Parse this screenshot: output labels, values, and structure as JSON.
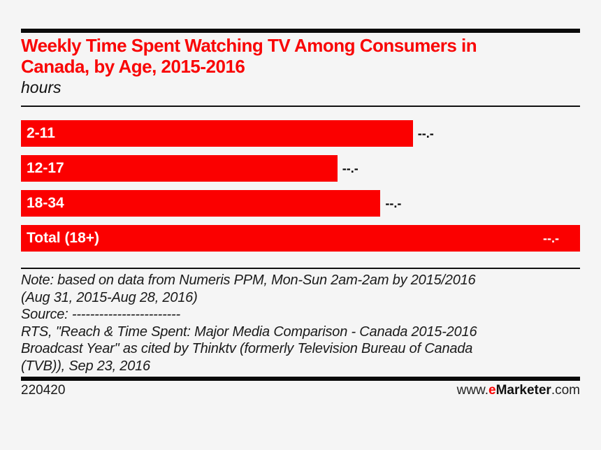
{
  "page": {
    "background": "#f5f5f5",
    "accent_red": "#fb0000",
    "rule_color": "#0a0a0a"
  },
  "header": {
    "title_line1": "Weekly Time Spent Watching TV Among Consumers in",
    "title_line2": "Canada, by Age, 2015-2016",
    "subtitle": "hours"
  },
  "chart_data": {
    "type": "bar",
    "orientation": "horizontal",
    "title": "Weekly Time Spent Watching TV Among Consumers in Canada, by Age, 2015-2016",
    "unit_label": "hours",
    "values_redacted": true,
    "grid": false,
    "legend": false,
    "bar_color": "#fb0000",
    "categories": [
      "2-11",
      "12-17",
      "18-34",
      "Total (18+)"
    ],
    "value_labels": [
      "--.-",
      "--.-",
      "--.-",
      "--.-"
    ],
    "bar_length_pct_of_plot_width": [
      70.1,
      56.6,
      64.3,
      100
    ],
    "bars": [
      {
        "label": "2-11",
        "value_label": "--.-",
        "width_pct": 70.1,
        "value_inside": false
      },
      {
        "label": "12-17",
        "value_label": "--.-",
        "width_pct": 56.6,
        "value_inside": false
      },
      {
        "label": "18-34",
        "value_label": "--.-",
        "width_pct": 64.3,
        "value_inside": false
      },
      {
        "label": "Total (18+)",
        "value_label": "--.-",
        "width_pct": 100,
        "value_inside": true
      }
    ]
  },
  "footnote": {
    "lines": [
      "Note: based on data from Numeris PPM, Mon-Sun 2am-2am by 2015/2016",
      "(Aug 31, 2015-Aug 28, 2016)",
      "Source: ------------------------",
      "RTS, \"Reach & Time Spent: Major Media Comparison - Canada 2015-2016",
      "Broadcast Year\" as cited by Thinktv (formerly Television Bureau of Canada",
      "(TVB)), Sep 23, 2016"
    ]
  },
  "footer": {
    "chart_id": "220420",
    "site_prefix": "www.",
    "brand_e": "e",
    "brand_rest": "Marketer",
    "site_suffix": ".com"
  }
}
